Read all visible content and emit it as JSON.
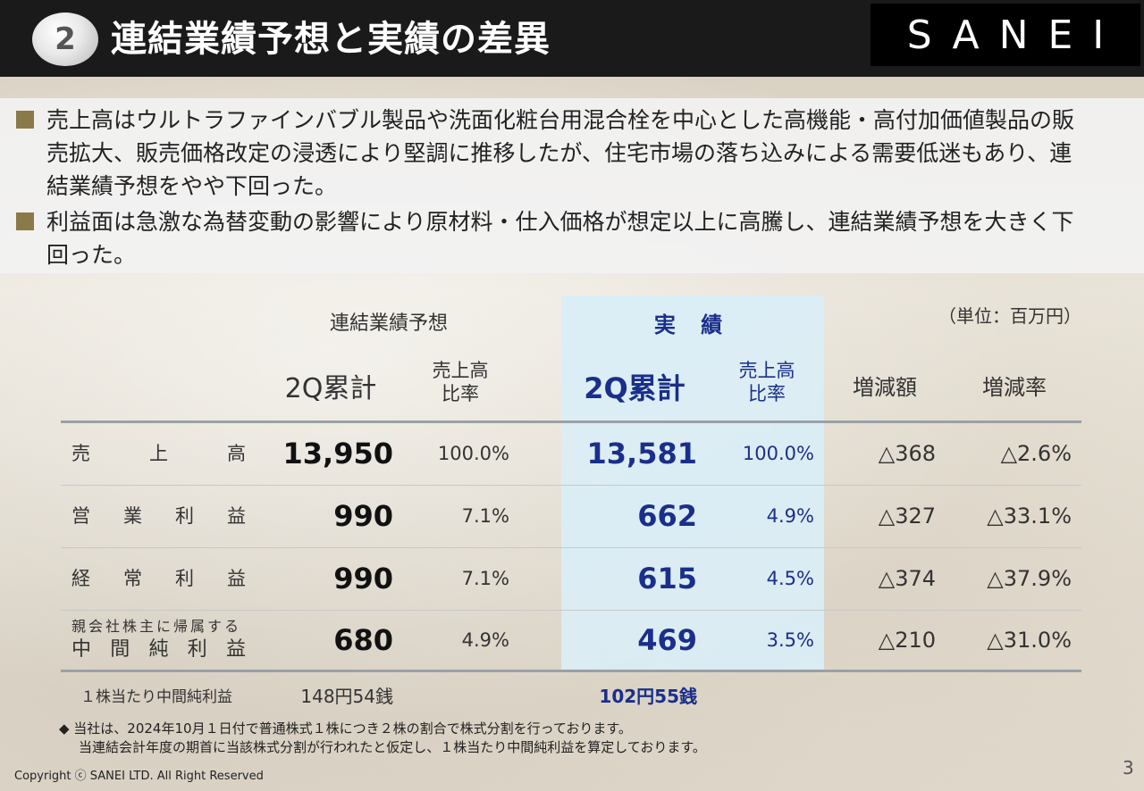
{
  "header": {
    "section_number": "2",
    "title": "連結業績予想と実績の差異",
    "logo_text": "SANEI"
  },
  "bullets": [
    "売上高はウルトラファインバブル製品や洗面化粧台用混合栓を中心とした高機能・高付加価値製品の販売拡大、販売価格改定の浸透により堅調に推移したが、住宅市場の落ち込みによる需要低迷もあり、連結業績予想をやや下回った。",
    "利益面は急激な為替変動の影響により原材料・仕入価格が想定以上に高騰し、連結業績予想を大きく下回った。"
  ],
  "table": {
    "unit": "（単位：百万円）",
    "group_forecast": "連結業績予想",
    "group_actual": "実 績",
    "columns": {
      "forecast_2q": "2Q累計",
      "forecast_ratio_1": "売上高",
      "forecast_ratio_2": "比率",
      "actual_2q": "2Q累計",
      "actual_ratio_1": "売上高",
      "actual_ratio_2": "比率",
      "diff_amount": "増減額",
      "diff_rate": "増減率"
    },
    "rows": [
      {
        "label_chars": [
          "売",
          "上",
          "高"
        ],
        "forecast": "13,950",
        "forecast_ratio": "100.0%",
        "actual": "13,581",
        "actual_ratio": "100.0%",
        "diff": "△368",
        "rate": "△2.6%"
      },
      {
        "label_chars": [
          "営",
          "業",
          "利",
          "益"
        ],
        "forecast": "990",
        "forecast_ratio": "7.1%",
        "actual": "662",
        "actual_ratio": "4.9%",
        "diff": "△327",
        "rate": "△33.1%"
      },
      {
        "label_chars": [
          "経",
          "常",
          "利",
          "益"
        ],
        "forecast": "990",
        "forecast_ratio": "7.1%",
        "actual": "615",
        "actual_ratio": "4.5%",
        "diff": "△374",
        "rate": "△37.9%"
      },
      {
        "label_small": "親会社株主に帰属する",
        "label_chars": [
          "中",
          "間",
          "純",
          "利",
          "益"
        ],
        "forecast": "680",
        "forecast_ratio": "4.9%",
        "actual": "469",
        "actual_ratio": "3.5%",
        "diff": "△210",
        "rate": "△31.0%"
      }
    ],
    "eps": {
      "label": "１株当たり中間純利益",
      "forecast": "148円54銭",
      "actual": "102円55銭"
    }
  },
  "note": {
    "line1": "◆ 当社は、2024年10月１日付で普通株式１株につき２株の割合で株式分割を行っております。",
    "line2": "当連結会計年度の期首に当該株式分割が行われたと仮定し、１株当たり中間純利益を算定しております。"
  },
  "footer": {
    "copyright": "Copyright ⓒ SANEI LTD. All Right Reserved",
    "page_number": "3"
  },
  "colors": {
    "header_bg": "#1a1a1a",
    "accent_blue": "#1a2f8a",
    "actual_column_bg": "#daeef6",
    "bullet_square": "#8a7a4a"
  }
}
